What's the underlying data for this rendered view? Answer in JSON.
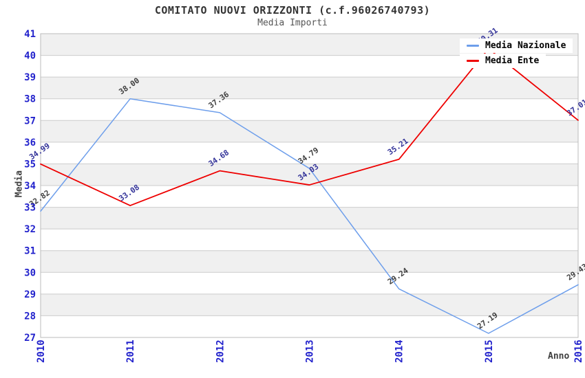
{
  "chart_data": {
    "type": "line",
    "title": "COMITATO NUOVI ORIZZONTI (c.f.96026740793)",
    "subtitle": "Media Importi",
    "xlabel": "Anno",
    "ylabel": "Media",
    "x_categories": [
      "2010",
      "2011",
      "2012",
      "2013",
      "2014",
      "2015",
      "2016"
    ],
    "ylim": [
      27,
      41
    ],
    "y_ticks": [
      27,
      28,
      29,
      30,
      31,
      32,
      33,
      34,
      35,
      36,
      37,
      38,
      39,
      40,
      41
    ],
    "grid": "horizontal gridlines with alternating gray/white row bands",
    "legend_position": "top-right",
    "series": [
      {
        "name": "Media Nazionale",
        "color": "#6d9eeb",
        "label_color": "#404040",
        "stroke_width": 1.5,
        "values": [
          32.82,
          38.0,
          37.36,
          34.79,
          29.24,
          27.19,
          29.43
        ]
      },
      {
        "name": "Media Ente",
        "color": "#ee0000",
        "label_color": "#333399",
        "stroke_width": 1.8,
        "values": [
          34.99,
          33.08,
          34.68,
          34.03,
          35.21,
          40.31,
          37.01
        ]
      }
    ],
    "styles": {
      "tick_color": "#2222cc",
      "band_color": "#f0f0f0",
      "grid_color": "#cccccc",
      "border_color": "#bbbbbb",
      "title_color": "#333333",
      "subtitle_color": "#555555",
      "axis_title_color": "#404040",
      "legend_text_color": "#000000",
      "background": "#ffffff"
    }
  }
}
